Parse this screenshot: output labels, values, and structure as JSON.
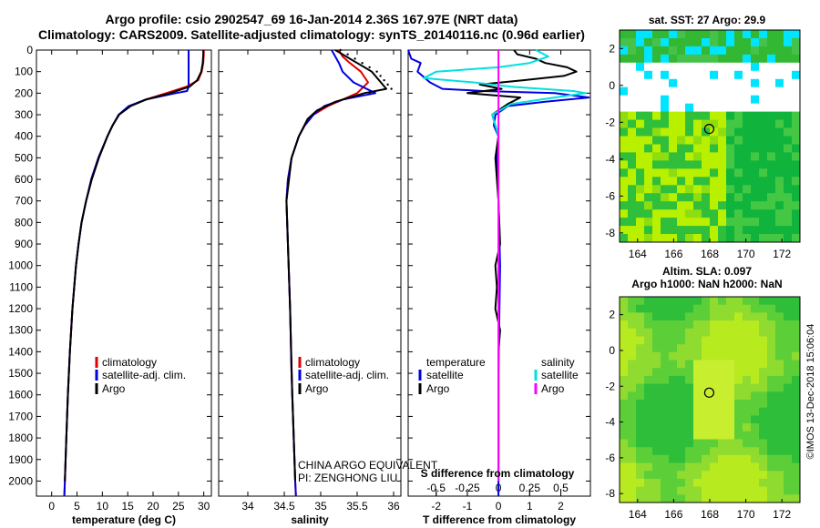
{
  "header": {
    "title_line1": "Argo profile: csio 2902547_69 16-Jan-2014 2.36S 167.97E (NRT data)",
    "title_line2": "Climatology: CARS2009. Satellite-adjusted climatology: synTS_20140116.nc (0.96d earlier)"
  },
  "colors": {
    "climatology": "#e00000",
    "satellite": "#0000e0",
    "argo": "#000000",
    "sat_salinity": "#00e0e0",
    "argo_salinity": "#ff00ff"
  },
  "chart_data": [
    {
      "type": "line",
      "name": "temperature-profile",
      "xlabel": "temperature (deg C)",
      "ylabel": "",
      "xlim": [
        -3,
        31.5
      ],
      "ylim": [
        2070,
        0
      ],
      "x_ticks": [
        0,
        5,
        10,
        15,
        20,
        25,
        30
      ],
      "y_ticks": [
        0,
        100,
        200,
        300,
        400,
        500,
        600,
        700,
        800,
        900,
        1000,
        1100,
        1200,
        1300,
        1400,
        1500,
        1600,
        1700,
        1800,
        1900,
        2000
      ],
      "legend": [
        "climatology",
        "satellite-adj. clim.",
        "Argo"
      ],
      "series": [
        {
          "name": "climatology",
          "color": "#e00000",
          "depth": [
            0,
            20,
            60,
            100,
            140,
            170,
            200,
            230,
            260,
            300,
            350,
            400,
            500,
            600,
            700,
            800,
            900,
            1000,
            1200,
            1400,
            1600,
            1800,
            2000,
            2070
          ],
          "values": [
            30.0,
            30.0,
            29.9,
            29.6,
            28.9,
            26.6,
            22.6,
            18.5,
            15.4,
            13.3,
            12.0,
            11.0,
            9.3,
            7.9,
            6.8,
            5.9,
            5.3,
            4.8,
            4.1,
            3.6,
            3.2,
            2.9,
            2.6,
            2.5
          ]
        },
        {
          "name": "satellite",
          "color": "#0000e0",
          "depth": [
            0,
            20,
            60,
            100,
            140,
            170,
            190,
            200,
            230,
            260,
            300,
            350,
            400,
            500,
            600,
            700,
            800,
            900,
            1000,
            1200,
            1400,
            1600,
            1800,
            2000,
            2070
          ],
          "values": [
            27.0,
            27.0,
            27.0,
            27.0,
            27.0,
            27.0,
            26.7,
            24.5,
            18.5,
            15.2,
            13.2,
            12.0,
            11.0,
            9.2,
            7.8,
            6.8,
            5.9,
            5.3,
            4.8,
            4.1,
            3.6,
            3.2,
            2.9,
            2.6,
            2.5
          ]
        },
        {
          "name": "Argo",
          "color": "#000000",
          "depth": [
            0,
            20,
            60,
            100,
            140,
            170,
            200,
            230,
            260,
            300,
            350,
            400,
            500,
            600,
            700,
            800,
            900,
            1000,
            1200,
            1400,
            1600,
            1800,
            2000
          ],
          "values": [
            29.9,
            29.9,
            29.8,
            29.5,
            28.7,
            27.2,
            23.4,
            18.6,
            15.6,
            13.3,
            12.0,
            11.0,
            9.3,
            7.9,
            6.8,
            5.9,
            5.3,
            4.8,
            4.1,
            3.6,
            3.2,
            2.9,
            2.6
          ]
        }
      ]
    },
    {
      "type": "line",
      "name": "salinity-profile",
      "xlabel": "salinity",
      "xlim": [
        33.6,
        36.1
      ],
      "ylim": [
        2070,
        0
      ],
      "x_ticks": [
        34,
        34.5,
        35,
        35.5,
        36
      ],
      "x_tick_labels": [
        "34",
        "34.5",
        "35",
        "35.5",
        "36"
      ],
      "legend": [
        "climatology",
        "satellite-adj. clim.",
        "Argo"
      ],
      "series": [
        {
          "name": "climatology",
          "color": "#e00000",
          "depth": [
            0,
            30,
            60,
            100,
            150,
            200,
            230,
            260,
            300,
            350,
            400,
            500,
            600,
            700,
            800,
            1000,
            1200,
            1500,
            2000,
            2070
          ],
          "values": [
            35.25,
            35.3,
            35.4,
            35.55,
            35.65,
            35.5,
            35.3,
            35.1,
            34.9,
            34.78,
            34.7,
            34.6,
            34.55,
            34.53,
            34.54,
            34.56,
            34.58,
            34.6,
            34.65,
            34.66
          ]
        },
        {
          "name": "satellite",
          "color": "#0000e0",
          "depth": [
            0,
            30,
            60,
            100,
            150,
            200,
            230,
            260,
            300,
            350,
            400,
            500,
            600,
            700,
            800,
            1000,
            1200,
            1500,
            2000,
            2070
          ],
          "values": [
            35.15,
            35.2,
            35.25,
            35.3,
            35.45,
            35.75,
            35.3,
            35.05,
            34.9,
            34.78,
            34.7,
            34.6,
            34.55,
            34.53,
            34.54,
            34.56,
            34.58,
            34.6,
            34.65,
            34.66
          ]
        },
        {
          "name": "Argo",
          "color": "#000000",
          "depth": [
            0,
            20,
            40,
            60,
            80,
            100,
            120,
            140,
            160,
            180,
            200,
            240,
            280,
            320,
            400,
            500,
            700,
            900,
            1200,
            1600,
            2000
          ],
          "values": [
            35.2,
            35.3,
            35.4,
            35.5,
            35.6,
            35.7,
            35.75,
            35.8,
            35.85,
            35.9,
            35.6,
            35.2,
            34.95,
            34.82,
            34.7,
            34.6,
            34.53,
            34.55,
            34.58,
            34.61,
            34.65
          ]
        }
      ]
    },
    {
      "type": "line",
      "name": "difference-profile",
      "xlabel": "T difference from climatology",
      "secondary_xlabel": "S difference from climatology",
      "xlim": [
        -2.9,
        2.95
      ],
      "ylim": [
        2070,
        0
      ],
      "x_ticks": [
        -2,
        -1,
        0,
        1,
        2
      ],
      "secondary_ticks": [
        -0.5,
        -0.25,
        0,
        0.25,
        0.5
      ],
      "secondary_tick_labels": [
        "-0.5",
        "-0.25",
        "0",
        "0.25",
        "0.5"
      ],
      "legend_left_title": "temperature",
      "legend_right_title": "salinity",
      "legend_left": [
        "satellite",
        "Argo"
      ],
      "legend_right": [
        "satellite",
        "Argo"
      ],
      "series": [
        {
          "name": "temperature-satellite",
          "color": "#0000e0",
          "depth": [
            0,
            40,
            60,
            100,
            150,
            180,
            190,
            200,
            220,
            240,
            260,
            300,
            350,
            400,
            500,
            700,
            1000,
            1500,
            2000,
            2070
          ],
          "values": [
            -2.9,
            -2.8,
            -2.5,
            -2.6,
            -2.2,
            -1.8,
            -0.5,
            1.8,
            2.9,
            1.5,
            0.3,
            -0.1,
            -0.15,
            0.0,
            -0.05,
            0.0,
            0.05,
            0.0,
            0.0,
            0.0
          ]
        },
        {
          "name": "temperature-Argo",
          "color": "#000000",
          "depth": [
            0,
            20,
            40,
            60,
            80,
            100,
            120,
            140,
            160,
            180,
            200,
            220,
            250,
            300,
            350,
            400,
            500,
            700,
            900,
            1000,
            1100,
            1200,
            1300,
            1400,
            1600,
            2000
          ],
          "values": [
            0.5,
            0.6,
            1.2,
            1.5,
            2.2,
            2.5,
            2.1,
            0.8,
            -0.6,
            0.1,
            -1.0,
            0.7,
            0.3,
            -0.2,
            -0.1,
            0.0,
            -0.1,
            0.0,
            0.05,
            -0.1,
            -0.05,
            -0.1,
            0.05,
            0.0,
            0.0,
            0.0
          ]
        },
        {
          "name": "salinity-satellite",
          "color": "#00e0e0",
          "depth": [
            0,
            30,
            60,
            80,
            100,
            130,
            150,
            170,
            190,
            200,
            220,
            250,
            300,
            400,
            600,
            1000,
            1500,
            2000
          ],
          "values": [
            0.3,
            0.4,
            0.25,
            0.0,
            -0.5,
            -0.6,
            -0.2,
            0.1,
            0.6,
            0.7,
            0.45,
            0.1,
            -0.05,
            0.0,
            0.0,
            0.0,
            0.0,
            0.0
          ]
        },
        {
          "name": "salinity-Argo",
          "color": "#ff00ff",
          "depth": [
            0,
            500,
            1000,
            1500,
            2000
          ],
          "values": [
            0.0,
            0.0,
            0.0,
            0.0,
            0.0
          ]
        }
      ]
    },
    {
      "type": "heatmap",
      "name": "sst-map",
      "title": "sat. SST: 27 Argo: 29.9",
      "xlim": [
        163,
        173
      ],
      "ylim": [
        -8.5,
        3
      ],
      "x_ticks": [
        164,
        166,
        168,
        170,
        172
      ],
      "y_ticks": [
        -8,
        -6,
        -4,
        -2,
        0,
        2
      ],
      "argo_position": [
        167.97,
        -2.36
      ]
    },
    {
      "type": "heatmap",
      "name": "sla-map",
      "title_line1": "Altim. SLA: 0.097",
      "title_line2": "Argo h1000: NaN h2000: NaN",
      "xlim": [
        163,
        173
      ],
      "ylim": [
        -8.5,
        3
      ],
      "x_ticks": [
        164,
        166,
        168,
        170,
        172
      ],
      "y_ticks": [
        -8,
        -6,
        -4,
        -2,
        0,
        2
      ],
      "argo_position": [
        167.97,
        -2.36
      ]
    }
  ],
  "notes": {
    "line1": "CHINA ARGO EQUIVALENT",
    "line2": "PI: ZENGHONG LIU",
    "imos_stamp": "©IMOS 13-Dec-2018 15:06:04"
  }
}
